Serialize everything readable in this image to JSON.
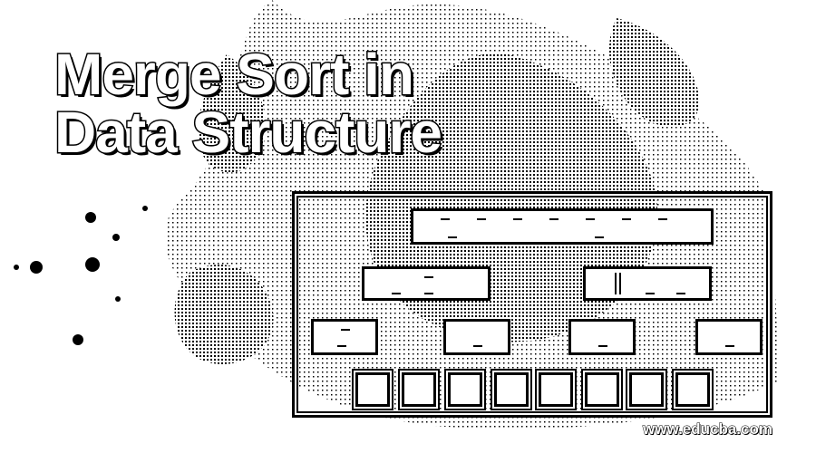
{
  "title": {
    "line1": "Merge Sort  in",
    "line2": "Data Structure"
  },
  "watermark": "www.educba.com",
  "diagram": {
    "levels": [
      {
        "name": "level-root",
        "count": 1
      },
      {
        "name": "level-halves",
        "count": 2
      },
      {
        "name": "level-quarters",
        "count": 4
      },
      {
        "name": "level-leaves",
        "count": 8
      }
    ]
  },
  "colors": {
    "ink": "#000000",
    "paper": "#ffffff"
  }
}
